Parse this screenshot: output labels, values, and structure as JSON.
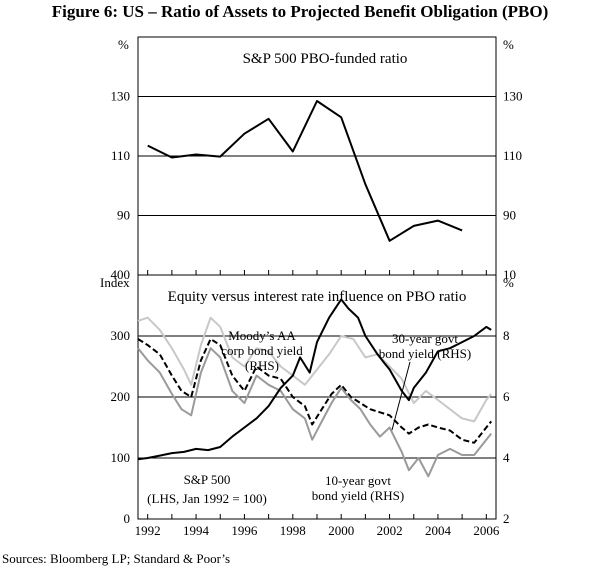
{
  "figure_title": "Figure 6: US – Ratio of Assets to Projected Benefit Obligation (PBO)",
  "source": "Sources: Bloomberg LP; Standard & Poor’s",
  "colors": {
    "black": "#000000",
    "dark_gray": "#555555",
    "mid_gray": "#9a9a9a",
    "light_gray": "#c8c8c8"
  },
  "chart_data": [
    {
      "type": "line",
      "title": "S&P 500 PBO-funded ratio",
      "left_unit": "%",
      "right_unit": "%",
      "ylim": [
        70,
        150
      ],
      "yticks": [
        90,
        110,
        130
      ],
      "xlim": [
        1991.6,
        2006.4
      ],
      "series": [
        {
          "name": "S&P 500 PBO-funded ratio",
          "color": "#000000",
          "x": [
            1992,
            1993,
            1994,
            1995,
            1996,
            1997,
            1998,
            1999,
            2000,
            2001,
            2002,
            2003,
            2004,
            2005
          ],
          "values": [
            113.5,
            109.5,
            110.5,
            109.8,
            117.5,
            122.5,
            111.5,
            128.5,
            123.0,
            100.5,
            81.5,
            86.5,
            88.3,
            85.0
          ]
        }
      ]
    },
    {
      "type": "line",
      "title": "Equity versus interest rate influence on PBO ratio",
      "left_unit": "Index",
      "right_unit": "%",
      "ylim_left": [
        0,
        400
      ],
      "yticks_left": [
        0,
        100,
        200,
        300,
        400
      ],
      "ylim_right": [
        2,
        10
      ],
      "yticks_right": [
        2,
        4,
        6,
        8,
        10
      ],
      "xlim": [
        1991.6,
        2006.4
      ],
      "xticks": [
        1992,
        1994,
        1996,
        1998,
        2000,
        2002,
        2004,
        2006
      ],
      "annotations": {
        "moodys": [
          "Moody’s AA",
          "corp bond yield",
          "(RHS)"
        ],
        "govt30": [
          "30-year govt",
          "bond yield (RHS)"
        ],
        "sp500": [
          "S&P 500",
          "(LHS, Jan 1992 = 100)"
        ],
        "govt10": [
          "10-year govt",
          "bond yield (RHS)"
        ]
      },
      "series": [
        {
          "name": "Moody’s AA corp bond yield (RHS)",
          "axis": "right",
          "color": "#c8c8c8",
          "x": [
            1991.6,
            1992.0,
            1992.5,
            1993.0,
            1993.5,
            1993.8,
            1994.2,
            1994.6,
            1995.0,
            1995.5,
            1996.0,
            1996.5,
            1997.0,
            1997.5,
            1998.0,
            1998.5,
            1999.0,
            1999.5,
            2000.0,
            2000.5,
            2001.0,
            2001.5,
            2002.0,
            2002.5,
            2003.0,
            2003.5,
            2004.0,
            2004.5,
            2005.0,
            2005.5,
            2006.0,
            2006.2
          ],
          "values": [
            8.5,
            8.6,
            8.2,
            7.6,
            6.9,
            6.4,
            7.7,
            8.6,
            8.3,
            7.3,
            7.0,
            7.6,
            7.5,
            7.0,
            6.7,
            6.4,
            6.9,
            7.4,
            8.0,
            7.9,
            7.3,
            7.4,
            7.0,
            6.6,
            5.8,
            6.2,
            5.9,
            5.6,
            5.3,
            5.2,
            5.9,
            6.1
          ]
        },
        {
          "name": "30-year govt bond yield (RHS)",
          "axis": "right",
          "color": "#000000",
          "dashed": true,
          "x": [
            1991.6,
            1992.0,
            1992.5,
            1993.0,
            1993.4,
            1993.8,
            1994.2,
            1994.6,
            1995.0,
            1995.5,
            1996.0,
            1996.5,
            1997.0,
            1997.5,
            1998.0,
            1998.5,
            1998.8,
            1999.2,
            1999.6,
            2000.0,
            2000.4,
            2000.8,
            2001.2,
            2001.6,
            2002.0,
            2002.5,
            2002.8,
            2003.2,
            2003.6,
            2004.0,
            2004.5,
            2005.0,
            2005.5,
            2006.0,
            2006.2
          ],
          "values": [
            7.9,
            7.7,
            7.4,
            6.7,
            6.2,
            6.0,
            7.2,
            7.9,
            7.7,
            6.7,
            6.2,
            7.0,
            6.7,
            6.6,
            6.0,
            5.7,
            5.1,
            5.6,
            6.1,
            6.4,
            6.0,
            5.8,
            5.6,
            5.5,
            5.4,
            5.0,
            4.8,
            5.0,
            5.1,
            5.0,
            4.9,
            4.6,
            4.5,
            5.0,
            5.2
          ]
        },
        {
          "name": "10-year govt bond yield (RHS)",
          "axis": "right",
          "color": "#9a9a9a",
          "x": [
            1991.6,
            1992.0,
            1992.5,
            1993.0,
            1993.4,
            1993.8,
            1994.2,
            1994.6,
            1995.0,
            1995.5,
            1996.0,
            1996.5,
            1997.0,
            1997.5,
            1998.0,
            1998.5,
            1998.8,
            1999.2,
            1999.6,
            2000.0,
            2000.4,
            2000.8,
            2001.2,
            2001.6,
            2002.0,
            2002.5,
            2002.8,
            2003.2,
            2003.6,
            2004.0,
            2004.5,
            2005.0,
            2005.5,
            2006.0,
            2006.2
          ],
          "values": [
            7.6,
            7.2,
            6.8,
            6.1,
            5.6,
            5.4,
            6.8,
            7.6,
            7.3,
            6.2,
            5.8,
            6.7,
            6.4,
            6.2,
            5.6,
            5.3,
            4.6,
            5.2,
            5.8,
            6.3,
            5.9,
            5.6,
            5.1,
            4.7,
            5.0,
            4.2,
            3.6,
            4.0,
            3.4,
            4.1,
            4.3,
            4.1,
            4.1,
            4.6,
            4.8
          ]
        },
        {
          "name": "S&P 500 (LHS, Jan 1992 = 100)",
          "axis": "left",
          "color": "#000000",
          "x": [
            1991.6,
            1992.0,
            1992.5,
            1993.0,
            1993.5,
            1994.0,
            1994.5,
            1995.0,
            1995.5,
            1996.0,
            1996.5,
            1997.0,
            1997.5,
            1998.0,
            1998.3,
            1998.7,
            1999.0,
            1999.5,
            2000.0,
            2000.3,
            2000.7,
            2001.0,
            2001.5,
            2001.8,
            2002.0,
            2002.5,
            2002.8,
            2003.0,
            2003.5,
            2004.0,
            2004.5,
            2005.0,
            2005.5,
            2006.0,
            2006.2
          ],
          "values": [
            98,
            100,
            104,
            108,
            110,
            115,
            113,
            118,
            135,
            150,
            165,
            185,
            215,
            235,
            265,
            240,
            290,
            330,
            360,
            345,
            330,
            300,
            270,
            255,
            245,
            210,
            195,
            215,
            240,
            275,
            280,
            290,
            300,
            315,
            310
          ]
        }
      ]
    }
  ]
}
